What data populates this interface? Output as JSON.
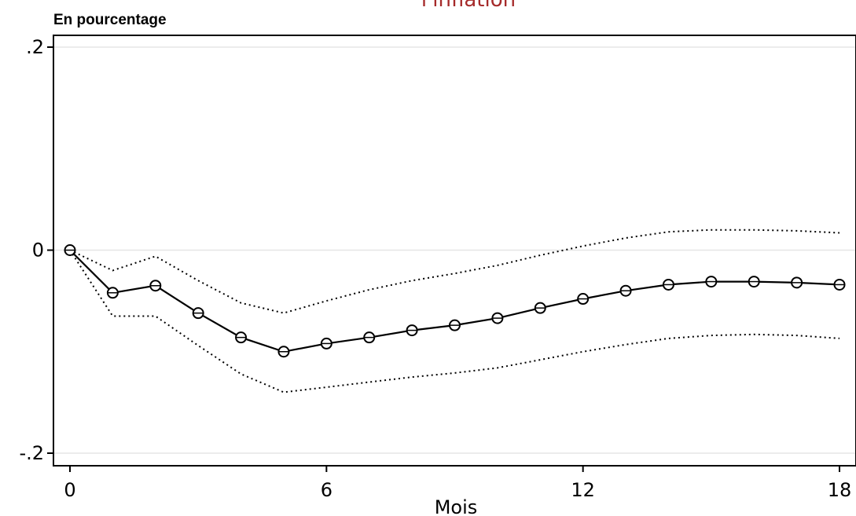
{
  "chart_data": {
    "type": "line",
    "title": "l'inflation",
    "ylabel": "En pourcentage",
    "xlabel": "Mois",
    "xlim": [
      0,
      18
    ],
    "ylim": [
      -0.2,
      0.2
    ],
    "x_ticks": [
      {
        "value": 0,
        "label": "0"
      },
      {
        "value": 6,
        "label": "6"
      },
      {
        "value": 12,
        "label": "12"
      },
      {
        "value": 18,
        "label": "18"
      }
    ],
    "y_ticks": [
      {
        "value": 0.2,
        "label": ".2"
      },
      {
        "value": 0,
        "label": "0"
      },
      {
        "value": -0.2,
        "label": "-.2"
      }
    ],
    "grid": "horizontal",
    "series": [
      {
        "style": "solid-with-circle-markers",
        "x": [
          0,
          1,
          2,
          3,
          4,
          5,
          6,
          7,
          8,
          9,
          10,
          11,
          12,
          13,
          14,
          15,
          16,
          17,
          18
        ],
        "y": [
          0,
          -0.042,
          -0.035,
          -0.062,
          -0.086,
          -0.1,
          -0.092,
          -0.086,
          -0.079,
          -0.074,
          -0.067,
          -0.057,
          -0.048,
          -0.04,
          -0.034,
          -0.031,
          -0.031,
          -0.032,
          -0.034
        ]
      },
      {
        "style": "dotted-upper-band",
        "x": [
          0,
          1,
          2,
          3,
          4,
          5,
          6,
          7,
          8,
          9,
          10,
          11,
          12,
          13,
          14,
          15,
          16,
          17,
          18
        ],
        "y": [
          0,
          -0.02,
          -0.006,
          -0.03,
          -0.052,
          -0.062,
          -0.05,
          -0.039,
          -0.03,
          -0.023,
          -0.015,
          -0.005,
          0.004,
          0.012,
          0.018,
          0.02,
          0.02,
          0.019,
          0.017
        ]
      },
      {
        "style": "dotted-lower-band",
        "x": [
          0,
          1,
          2,
          3,
          4,
          5,
          6,
          7,
          8,
          9,
          10,
          11,
          12,
          13,
          14,
          15,
          16,
          17,
          18
        ],
        "y": [
          0,
          -0.065,
          -0.065,
          -0.094,
          -0.122,
          -0.14,
          -0.135,
          -0.13,
          -0.125,
          -0.121,
          -0.116,
          -0.108,
          -0.1,
          -0.093,
          -0.087,
          -0.084,
          -0.083,
          -0.084,
          -0.087
        ]
      }
    ],
    "colors": {
      "line": "#000000",
      "title": "#a52a2a",
      "grid": "#e6e6e6"
    }
  }
}
